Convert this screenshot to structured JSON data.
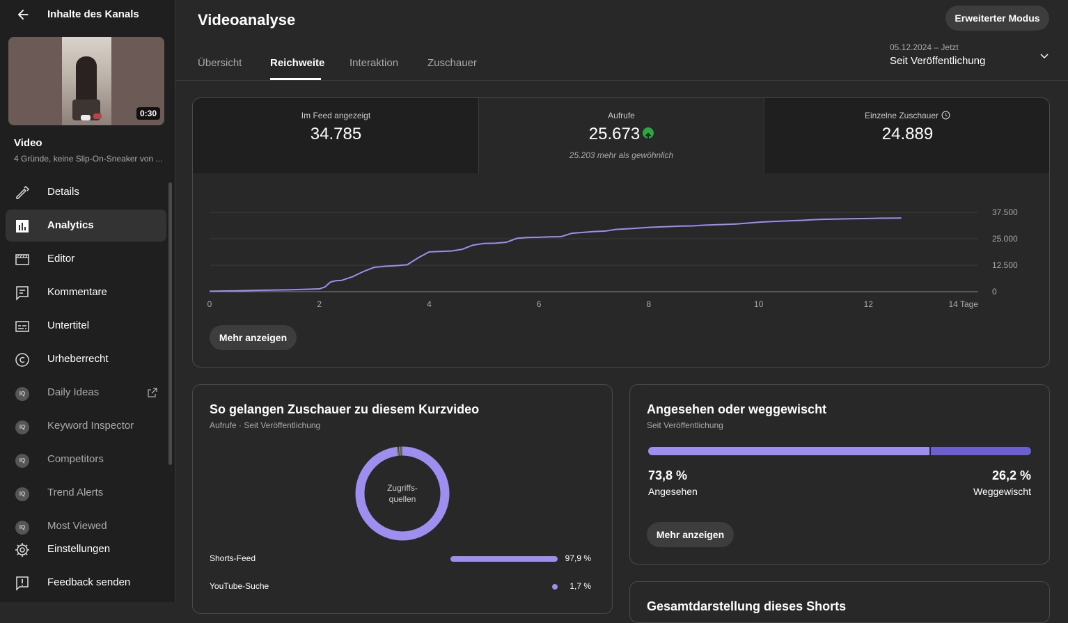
{
  "sidebar": {
    "title": "Inhalte des Kanals",
    "thumbnail": {
      "duration": "0:30"
    },
    "video_label": "Video",
    "video_subtitle": "4 Gründe, keine Slip-On-Sneaker von ...",
    "items": [
      {
        "label": "Details",
        "icon": "pencil-icon",
        "active": false
      },
      {
        "label": "Analytics",
        "icon": "analytics-icon",
        "active": true
      },
      {
        "label": "Editor",
        "icon": "clapperboard-icon",
        "active": false
      },
      {
        "label": "Kommentare",
        "icon": "comment-icon",
        "active": false
      },
      {
        "label": "Untertitel",
        "icon": "subtitles-icon",
        "active": false
      },
      {
        "label": "Urheberrecht",
        "icon": "copyright-icon",
        "active": false
      },
      {
        "label": "Daily Ideas",
        "icon": "vidiq-icon",
        "external": true
      },
      {
        "label": "Keyword Inspector",
        "icon": "vidiq-icon",
        "external": false
      },
      {
        "label": "Competitors",
        "icon": "vidiq-icon",
        "external": false
      },
      {
        "label": "Trend Alerts",
        "icon": "vidiq-icon",
        "external": false
      },
      {
        "label": "Most Viewed",
        "icon": "vidiq-icon",
        "external": false
      },
      {
        "label": "Einstellungen",
        "icon": "gear-icon"
      },
      {
        "label": "Feedback senden",
        "icon": "feedback-icon"
      }
    ],
    "ext_badge": "IQ"
  },
  "header": {
    "title": "Videoanalyse",
    "advanced_mode_label": "Erweiterter Modus",
    "tabs": [
      {
        "label": "Übersicht",
        "active": false
      },
      {
        "label": "Reichweite",
        "active": true
      },
      {
        "label": "Interaktion",
        "active": false
      },
      {
        "label": "Zuschauer",
        "active": false
      }
    ],
    "date_range": {
      "range": "05.12.2024 – Jetzt",
      "label": "Seit Veröffentlichung"
    }
  },
  "metrics": [
    {
      "label": "Im Feed angezeigt",
      "value": "34.785",
      "note": ""
    },
    {
      "label": "Aufrufe",
      "value": "25.673",
      "note": "25.203 mehr als gewöhnlich",
      "trend": "up",
      "trend_color": "#2ba640"
    },
    {
      "label": "Einzelne Zuschauer",
      "value": "24.889",
      "note": ""
    }
  ],
  "chart_data": {
    "type": "line",
    "title": "",
    "xlabel": "",
    "ylabel": "",
    "x_ticks": [
      "0",
      "2",
      "4",
      "6",
      "8",
      "10",
      "12",
      "14 Tage"
    ],
    "y_ticks": [
      "37.500",
      "25.000",
      "12.500",
      "0"
    ],
    "xlim": [
      0,
      14
    ],
    "ylim": [
      0,
      37500
    ],
    "grid": true,
    "line_color": "#9e8fef",
    "series": [
      {
        "x": [
          0,
          0.5,
          1,
          1.5,
          2,
          2.1,
          2.2,
          2.3,
          2.4,
          2.6,
          2.8,
          3,
          3.2,
          3.4,
          3.6,
          3.8,
          4,
          4.2,
          4.4,
          4.6,
          4.8,
          5,
          5.2,
          5.4,
          5.6,
          5.8,
          6,
          6.2,
          6.4,
          6.6,
          6.8,
          7,
          7.2,
          7.4,
          7.6,
          7.8,
          8,
          8.2,
          8.4,
          8.6,
          8.8,
          9,
          9.2,
          9.4,
          9.6,
          9.8,
          10,
          10.2,
          10.4,
          10.6,
          10.8,
          11,
          11.2,
          11.4,
          11.6,
          11.8,
          12,
          12.2,
          12.4,
          12.6
        ],
        "y": [
          200,
          400,
          700,
          900,
          1300,
          2200,
          4500,
          5200,
          5300,
          7000,
          9500,
          11500,
          12000,
          12300,
          12700,
          16000,
          18800,
          19000,
          19200,
          20000,
          22000,
          22800,
          22900,
          23300,
          25200,
          25600,
          25700,
          25900,
          26000,
          27600,
          28000,
          28400,
          28600,
          29400,
          29700,
          30000,
          30400,
          30600,
          30800,
          31000,
          31100,
          31400,
          31600,
          31800,
          32000,
          32400,
          32800,
          33100,
          33300,
          33500,
          33700,
          34000,
          34200,
          34300,
          34400,
          34500,
          34600,
          34700,
          34750,
          34785
        ]
      }
    ]
  },
  "more_button_label": "Mehr anzeigen",
  "traffic": {
    "title": "So gelangen Zuschauer zu diesem Kurzvideo",
    "subtitle": "Aufrufe · Seit Veröffentlichung",
    "donut_label": "Zugriffs-\nquellen",
    "sources": [
      {
        "name": "Shorts-Feed",
        "value": "97,9 %",
        "fraction": 0.979
      },
      {
        "name": "YouTube-Suche",
        "value": "1,7 %",
        "fraction": 0.017
      }
    ],
    "color": "#9e8fef"
  },
  "watched": {
    "title": "Angesehen oder weggewischt",
    "subtitle": "Seit Veröffentlichung",
    "watched_pct": "73,8 %",
    "watched_fraction": 0.738,
    "watched_label": "Angesehen",
    "swiped_pct": "26,2 %",
    "swiped_fraction": 0.262,
    "swiped_label": "Weggewischt",
    "colors": {
      "watched": "#9e8fef",
      "swiped": "#6c5fcf"
    }
  },
  "next_card": {
    "title": "Gesamtdarstellung dieses Shorts"
  }
}
